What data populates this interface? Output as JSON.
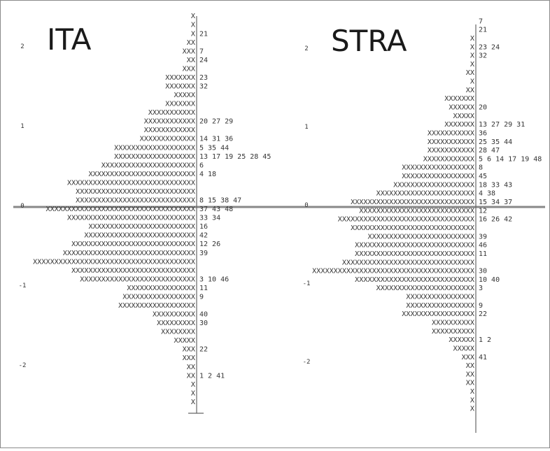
{
  "chart_data": [
    {
      "type": "wright_map",
      "title": "ITA",
      "mark_char": "X",
      "y_ticks": [
        {
          "value": 2,
          "label": "2"
        },
        {
          "value": 1,
          "label": "1"
        },
        {
          "value": 0,
          "label": "0"
        },
        {
          "value": -1,
          "label": "-1"
        },
        {
          "value": -2,
          "label": "-2"
        }
      ],
      "rows": [
        {
          "logit": 2.66,
          "count": 0,
          "items": ""
        },
        {
          "logit": 2.38,
          "count": 1,
          "items": ""
        },
        {
          "logit": 2.27,
          "count": 1,
          "items": ""
        },
        {
          "logit": 2.16,
          "count": 1,
          "items": "21"
        },
        {
          "logit": 2.05,
          "count": 2,
          "items": ""
        },
        {
          "logit": 1.94,
          "count": 3,
          "items": "7"
        },
        {
          "logit": 1.83,
          "count": 2,
          "items": "24"
        },
        {
          "logit": 1.72,
          "count": 3,
          "items": ""
        },
        {
          "logit": 1.61,
          "count": 7,
          "items": "23"
        },
        {
          "logit": 1.5,
          "count": 7,
          "items": "32"
        },
        {
          "logit": 1.39,
          "count": 5,
          "items": ""
        },
        {
          "logit": 1.28,
          "count": 7,
          "items": ""
        },
        {
          "logit": 1.17,
          "count": 11,
          "items": ""
        },
        {
          "logit": 1.06,
          "count": 12,
          "items": "20 27 29"
        },
        {
          "logit": 0.95,
          "count": 12,
          "items": ""
        },
        {
          "logit": 0.84,
          "count": 13,
          "items": "14 31 36"
        },
        {
          "logit": 0.73,
          "count": 19,
          "items": "5 35 44"
        },
        {
          "logit": 0.62,
          "count": 19,
          "items": "13 17 19 25 28 45"
        },
        {
          "logit": 0.51,
          "count": 22,
          "items": "6"
        },
        {
          "logit": 0.4,
          "count": 25,
          "items": "4 18"
        },
        {
          "logit": 0.29,
          "count": 30,
          "items": ""
        },
        {
          "logit": 0.18,
          "count": 28,
          "items": ""
        },
        {
          "logit": 0.07,
          "count": 28,
          "items": "8 15 38 47"
        },
        {
          "logit": -0.04,
          "count": 35,
          "items": "37 43 48"
        },
        {
          "logit": -0.15,
          "count": 30,
          "items": "33 34"
        },
        {
          "logit": -0.26,
          "count": 25,
          "items": "16"
        },
        {
          "logit": -0.37,
          "count": 26,
          "items": "42"
        },
        {
          "logit": -0.48,
          "count": 29,
          "items": "12 26"
        },
        {
          "logit": -0.59,
          "count": 31,
          "items": "39"
        },
        {
          "logit": -0.7,
          "count": 38,
          "items": ""
        },
        {
          "logit": -0.81,
          "count": 29,
          "items": ""
        },
        {
          "logit": -0.92,
          "count": 27,
          "items": "3 10 46"
        },
        {
          "logit": -1.03,
          "count": 16,
          "items": "11"
        },
        {
          "logit": -1.14,
          "count": 17,
          "items": "9"
        },
        {
          "logit": -1.25,
          "count": 18,
          "items": ""
        },
        {
          "logit": -1.36,
          "count": 10,
          "items": "40"
        },
        {
          "logit": -1.47,
          "count": 9,
          "items": "30"
        },
        {
          "logit": -1.58,
          "count": 8,
          "items": ""
        },
        {
          "logit": -1.69,
          "count": 5,
          "items": ""
        },
        {
          "logit": -1.8,
          "count": 3,
          "items": "22"
        },
        {
          "logit": -1.91,
          "count": 3,
          "items": ""
        },
        {
          "logit": -2.02,
          "count": 2,
          "items": ""
        },
        {
          "logit": -2.13,
          "count": 2,
          "items": "1 2 41"
        },
        {
          "logit": -2.24,
          "count": 1,
          "items": ""
        },
        {
          "logit": -2.35,
          "count": 1,
          "items": ""
        },
        {
          "logit": -2.46,
          "count": 1,
          "items": ""
        },
        {
          "logit": -2.57,
          "count": 0,
          "items": ""
        }
      ]
    },
    {
      "type": "wright_map",
      "title": "STRA",
      "mark_char": "X",
      "y_ticks": [
        {
          "value": 2,
          "label": "2"
        },
        {
          "value": 1,
          "label": "1"
        },
        {
          "value": 0,
          "label": "0"
        },
        {
          "value": -1,
          "label": "-1"
        },
        {
          "value": -2,
          "label": "-2"
        }
      ],
      "rows": [
        {
          "logit": 2.68,
          "count": 0,
          "items": ""
        },
        {
          "logit": 2.57,
          "count": 0,
          "items": ""
        },
        {
          "logit": 2.46,
          "count": 0,
          "items": ""
        },
        {
          "logit": 2.35,
          "count": 0,
          "items": "7"
        },
        {
          "logit": 2.24,
          "count": 0,
          "items": "21"
        },
        {
          "logit": 2.13,
          "count": 1,
          "items": ""
        },
        {
          "logit": 2.02,
          "count": 1,
          "items": "23 24"
        },
        {
          "logit": 1.91,
          "count": 1,
          "items": "32"
        },
        {
          "logit": 1.8,
          "count": 1,
          "items": ""
        },
        {
          "logit": 1.69,
          "count": 2,
          "items": ""
        },
        {
          "logit": 1.58,
          "count": 1,
          "items": ""
        },
        {
          "logit": 1.47,
          "count": 2,
          "items": ""
        },
        {
          "logit": 1.36,
          "count": 7,
          "items": ""
        },
        {
          "logit": 1.25,
          "count": 6,
          "items": "20"
        },
        {
          "logit": 1.14,
          "count": 5,
          "items": ""
        },
        {
          "logit": 1.03,
          "count": 7,
          "items": "13 27 29 31"
        },
        {
          "logit": 0.92,
          "count": 11,
          "items": "36"
        },
        {
          "logit": 0.81,
          "count": 11,
          "items": "25 35 44"
        },
        {
          "logit": 0.7,
          "count": 11,
          "items": "28 47"
        },
        {
          "logit": 0.59,
          "count": 12,
          "items": "5 6 14 17 19 48"
        },
        {
          "logit": 0.48,
          "count": 17,
          "items": "8"
        },
        {
          "logit": 0.37,
          "count": 17,
          "items": "45"
        },
        {
          "logit": 0.26,
          "count": 19,
          "items": "18 33 43"
        },
        {
          "logit": 0.15,
          "count": 23,
          "items": "4 38"
        },
        {
          "logit": 0.04,
          "count": 29,
          "items": "15 34 37"
        },
        {
          "logit": -0.07,
          "count": 27,
          "items": "12"
        },
        {
          "logit": -0.18,
          "count": 32,
          "items": "16 26 42"
        },
        {
          "logit": -0.29,
          "count": 29,
          "items": ""
        },
        {
          "logit": -0.4,
          "count": 25,
          "items": "39"
        },
        {
          "logit": -0.51,
          "count": 28,
          "items": "46"
        },
        {
          "logit": -0.62,
          "count": 28,
          "items": "11"
        },
        {
          "logit": -0.73,
          "count": 31,
          "items": ""
        },
        {
          "logit": -0.84,
          "count": 38,
          "items": "30"
        },
        {
          "logit": -0.95,
          "count": 28,
          "items": "10 40"
        },
        {
          "logit": -1.06,
          "count": 23,
          "items": "3"
        },
        {
          "logit": -1.17,
          "count": 16,
          "items": ""
        },
        {
          "logit": -1.28,
          "count": 16,
          "items": "9"
        },
        {
          "logit": -1.39,
          "count": 17,
          "items": "22"
        },
        {
          "logit": -1.5,
          "count": 10,
          "items": ""
        },
        {
          "logit": -1.61,
          "count": 10,
          "items": ""
        },
        {
          "logit": -1.72,
          "count": 6,
          "items": "1 2"
        },
        {
          "logit": -1.83,
          "count": 5,
          "items": ""
        },
        {
          "logit": -1.94,
          "count": 3,
          "items": "41"
        },
        {
          "logit": -2.05,
          "count": 2,
          "items": ""
        },
        {
          "logit": -2.16,
          "count": 2,
          "items": ""
        },
        {
          "logit": -2.27,
          "count": 2,
          "items": ""
        },
        {
          "logit": -2.38,
          "count": 1,
          "items": ""
        },
        {
          "logit": -2.49,
          "count": 1,
          "items": ""
        },
        {
          "logit": -2.6,
          "count": 1,
          "items": ""
        }
      ]
    }
  ]
}
